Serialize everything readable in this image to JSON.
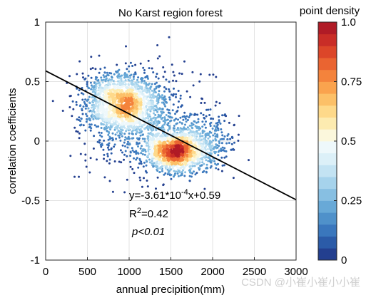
{
  "chart_data": {
    "type": "scatter",
    "title": "No Karst region forest",
    "xlabel": "annual precipition(mm)",
    "ylabel": "correlation coefficients",
    "xlim": [
      0,
      3000
    ],
    "ylim": [
      -1,
      1
    ],
    "xticks": [
      0,
      500,
      1000,
      1500,
      2000,
      2500,
      3000
    ],
    "xtick_labels": [
      "0",
      "500",
      "1000",
      "1500",
      "2000",
      "2500",
      "3000"
    ],
    "yticks": [
      -1,
      -0.5,
      0,
      0.5,
      1
    ],
    "ytick_labels": [
      "-1",
      "-0.5",
      "0",
      "0.5",
      "1"
    ],
    "grid": true,
    "fit_line": {
      "slope": -0.000361,
      "intercept": 0.59
    },
    "annotations": {
      "equation_prefix": "y=-3.61*10",
      "equation_exponent": "-4",
      "equation_suffix": "x+0.59",
      "r2_base": "R",
      "r2_exponent": "2",
      "r2_value": "=0.42",
      "p_value": "p<0.01"
    },
    "clusters": [
      {
        "center": [
          930,
          0.31
        ],
        "spread": [
          230,
          0.13
        ],
        "count": 1700
      },
      {
        "center": [
          1560,
          -0.08
        ],
        "spread": [
          180,
          0.085
        ],
        "count": 1300
      },
      {
        "center": [
          1250,
          0.1
        ],
        "spread": [
          380,
          0.22
        ],
        "count": 500
      },
      {
        "center": [
          1950,
          -0.02
        ],
        "spread": [
          180,
          0.12
        ],
        "count": 260
      }
    ],
    "colorbar": {
      "title": "point density",
      "range": [
        0,
        1
      ],
      "ticks": [
        0,
        0.25,
        0.5,
        0.75,
        1.0
      ],
      "tick_labels": [
        "0",
        "0.25",
        "0.5",
        "0.75",
        "1.0"
      ],
      "colors": [
        "#233f8f",
        "#2b5ba8",
        "#3a77bd",
        "#4f91ca",
        "#68a9d7",
        "#87bfe2",
        "#a6d3ec",
        "#c3e3f3",
        "#dcf0f8",
        "#eef8fb",
        "#fbf7dc",
        "#fdebb0",
        "#fed98a",
        "#fcc068",
        "#faa34e",
        "#f4833c",
        "#ea6431",
        "#dc4629",
        "#c92d27",
        "#b01b26"
      ]
    }
  },
  "watermark": "CSDN @小崔小崔小小崔"
}
